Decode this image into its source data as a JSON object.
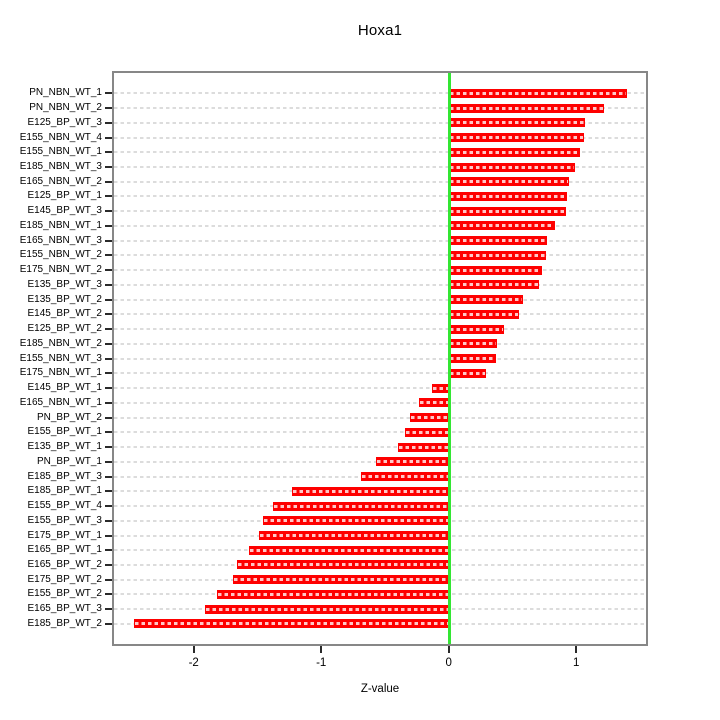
{
  "title": "Hoxa1",
  "chart_data": {
    "type": "bar",
    "orientation": "horizontal",
    "title": "Hoxa1",
    "xlabel": "Z-value",
    "categories": [
      "PN_NBN_WT_1",
      "PN_NBN_WT_2",
      "E125_BP_WT_3",
      "E155_NBN_WT_4",
      "E155_NBN_WT_1",
      "E185_NBN_WT_3",
      "E165_NBN_WT_2",
      "E125_BP_WT_1",
      "E145_BP_WT_3",
      "E185_NBN_WT_1",
      "E165_NBN_WT_3",
      "E155_NBN_WT_2",
      "E175_NBN_WT_2",
      "E135_BP_WT_3",
      "E135_BP_WT_2",
      "E145_BP_WT_2",
      "E125_BP_WT_2",
      "E185_NBN_WT_2",
      "E155_NBN_WT_3",
      "E175_NBN_WT_1",
      "E145_BP_WT_1",
      "E165_NBN_WT_1",
      "PN_BP_WT_2",
      "E155_BP_WT_1",
      "E135_BP_WT_1",
      "PN_BP_WT_1",
      "E185_BP_WT_3",
      "E185_BP_WT_1",
      "E155_BP_WT_4",
      "E155_BP_WT_3",
      "E175_BP_WT_1",
      "E165_BP_WT_1",
      "E165_BP_WT_2",
      "E175_BP_WT_2",
      "E155_BP_WT_2",
      "E165_BP_WT_3",
      "E185_BP_WT_2"
    ],
    "values": [
      1.4,
      1.22,
      1.07,
      1.06,
      1.03,
      0.99,
      0.94,
      0.93,
      0.92,
      0.83,
      0.77,
      0.76,
      0.73,
      0.71,
      0.58,
      0.55,
      0.43,
      0.38,
      0.37,
      0.29,
      -0.13,
      -0.23,
      -0.3,
      -0.34,
      -0.4,
      -0.57,
      -0.69,
      -1.23,
      -1.38,
      -1.46,
      -1.49,
      -1.57,
      -1.66,
      -1.69,
      -1.82,
      -1.91,
      -2.47
    ],
    "xticks": [
      -2,
      -1,
      0,
      1
    ],
    "xlim": [
      -2.64,
      1.56
    ],
    "grid": "dashed horizontal line per category, drawn across full plot width",
    "legend": "none",
    "colors": {
      "bar": "#fe0000",
      "bar_inner_dash": "rgba(255,255,255,0.78)",
      "zero_line": "#33e633",
      "gridline": "#dcdcdc",
      "box_border": "#878787",
      "tick": "#2a2a2a",
      "text": "#000000"
    }
  }
}
